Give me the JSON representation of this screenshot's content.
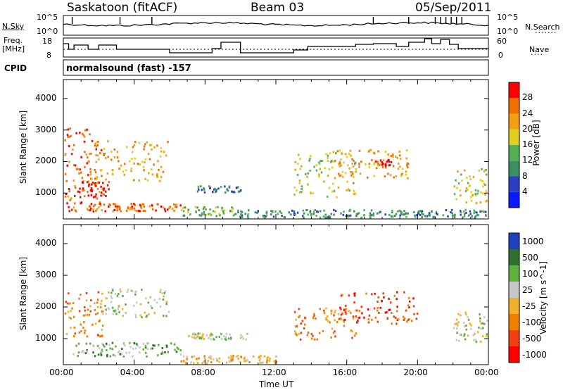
{
  "header": {
    "station": "Saskatoon (fitACF)",
    "beam": "Beam 03",
    "date": "05/Sep/2011"
  },
  "sky_panel": {
    "left_label": "N.Sky",
    "right_label": "N.Search",
    "left_ticks": [
      "10^5",
      "10^0"
    ],
    "right_ticks": [
      "10^5",
      "10^0"
    ]
  },
  "freq_panel": {
    "left_label": "Freq.",
    "left_unit": "[MHz]",
    "right_label": "Nave",
    "left_ticks": [
      "18",
      "8"
    ],
    "right_ticks": [
      "60",
      "0"
    ]
  },
  "cpid": {
    "label": "CPID",
    "value": "normalsound (fast) -157"
  },
  "colors": {
    "power": [
      "#0a1aff",
      "#2a40c0",
      "#3a9060",
      "#55b055",
      "#e0d020",
      "#f0a010",
      "#f07000",
      "#ff0000"
    ],
    "velocity": [
      "#ff0000",
      "#f04010",
      "#f08000",
      "#f0b030",
      "#c8c8c8",
      "#60b040",
      "#307030",
      "#2040c0"
    ]
  },
  "chart_data": [
    {
      "type": "heatmap",
      "title": "Power",
      "ylabel": "Slant Range [km]",
      "xlabel": "Time UT",
      "xticks": [
        "00:00",
        "04:00",
        "08:00",
        "12:00",
        "16:00",
        "20:00",
        "00:00"
      ],
      "yticks": [
        "1000",
        "2000",
        "3000",
        "4000"
      ],
      "ylim": [
        180,
        4600
      ],
      "colorbar": {
        "label": "Power [dB]",
        "ticks": [
          "4",
          "8",
          "12",
          "16",
          "20",
          "24",
          "28"
        ]
      },
      "blobs": [
        {
          "t0": 0.0,
          "t1": 2.2,
          "r0": 600,
          "r1": 3100,
          "level": 6
        },
        {
          "t0": 0.6,
          "t1": 2.6,
          "r0": 900,
          "r1": 1400,
          "level": 7
        },
        {
          "t0": 1.8,
          "t1": 5.9,
          "r0": 1400,
          "r1": 2700,
          "level": 5
        },
        {
          "t0": 0.2,
          "t1": 6.6,
          "r0": 450,
          "r1": 700,
          "level": 6
        },
        {
          "t0": 6.6,
          "t1": 9.8,
          "r0": 300,
          "r1": 600,
          "level": 3
        },
        {
          "t0": 7.5,
          "t1": 10.0,
          "r0": 1050,
          "r1": 1250,
          "level": 2
        },
        {
          "t0": 9.8,
          "t1": 24.0,
          "r0": 250,
          "r1": 500,
          "level": 2
        },
        {
          "t0": 13.0,
          "t1": 16.5,
          "r0": 900,
          "r1": 2300,
          "level": 4
        },
        {
          "t0": 15.0,
          "t1": 19.5,
          "r0": 1500,
          "r1": 2400,
          "level": 5
        },
        {
          "t0": 17.5,
          "t1": 18.5,
          "r0": 1900,
          "r1": 2100,
          "level": 7
        },
        {
          "t0": 22.0,
          "t1": 24.0,
          "r0": 700,
          "r1": 1800,
          "level": 4
        }
      ]
    },
    {
      "type": "heatmap",
      "title": "Velocity",
      "ylabel": "Slant Range [km]",
      "xlabel": "Time UT",
      "xticks": [
        "00:00",
        "04:00",
        "08:00",
        "12:00",
        "16:00",
        "20:00",
        "00:00"
      ],
      "yticks": [
        "1000",
        "2000",
        "3000",
        "4000"
      ],
      "ylim": [
        180,
        4600
      ],
      "colorbar": {
        "label": "Velocity [m s^-1]",
        "ticks": [
          "1000",
          "500",
          "100",
          "25",
          "-25",
          "-100",
          "-500",
          "-1000"
        ]
      },
      "blobs": [
        {
          "t0": 0.0,
          "t1": 2.2,
          "r0": 1100,
          "r1": 2500,
          "level": 2
        },
        {
          "t0": 2.0,
          "t1": 6.0,
          "r0": 1700,
          "r1": 2600,
          "level": 4
        },
        {
          "t0": 0.5,
          "t1": 6.6,
          "r0": 450,
          "r1": 900,
          "level": 5
        },
        {
          "t0": 6.6,
          "t1": 12.0,
          "r0": 250,
          "r1": 500,
          "level": 3
        },
        {
          "t0": 7.0,
          "t1": 10.5,
          "r0": 1000,
          "r1": 1200,
          "level": 4
        },
        {
          "t0": 13.0,
          "t1": 16.5,
          "r0": 1000,
          "r1": 2000,
          "level": 2
        },
        {
          "t0": 15.5,
          "t1": 20.0,
          "r0": 1500,
          "r1": 2500,
          "level": 1
        },
        {
          "t0": 22.0,
          "t1": 24.0,
          "r0": 900,
          "r1": 1900,
          "level": 4
        }
      ]
    }
  ]
}
